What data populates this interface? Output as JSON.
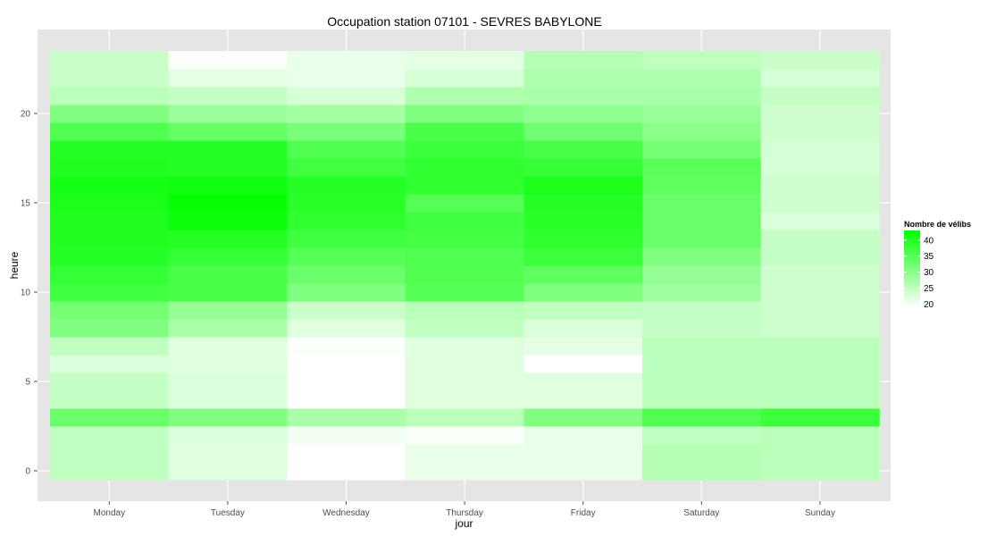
{
  "chart_data": {
    "type": "heatmap",
    "title": "Occupation station 07101 - SEVRES BABYLONE",
    "xlabel": "jour",
    "ylabel": "heure",
    "x": [
      "Monday",
      "Tuesday",
      "Wednesday",
      "Thursday",
      "Friday",
      "Saturday",
      "Sunday"
    ],
    "y": [
      0,
      1,
      2,
      3,
      4,
      5,
      6,
      7,
      8,
      9,
      10,
      11,
      12,
      13,
      14,
      15,
      16,
      17,
      18,
      19,
      20,
      21,
      22,
      23
    ],
    "y_ticks": [
      0,
      5,
      10,
      15,
      20
    ],
    "ylim": [
      -0.5,
      23.5
    ],
    "values": [
      [
        25.0,
        22.0,
        19.0,
        21.0,
        21.0,
        26.0,
        25.5
      ],
      [
        25.0,
        22.0,
        19.0,
        21.0,
        21.0,
        26.0,
        25.5
      ],
      [
        25.0,
        22.5,
        20.0,
        19.5,
        21.0,
        25.0,
        25.5
      ],
      [
        33.0,
        31.0,
        27.0,
        25.5,
        31.0,
        35.5,
        37.5
      ],
      [
        24.5,
        22.5,
        19.0,
        22.0,
        22.0,
        25.5,
        25.5
      ],
      [
        24.5,
        22.5,
        19.0,
        22.0,
        22.0,
        25.5,
        25.5
      ],
      [
        22.5,
        22.0,
        19.0,
        22.0,
        19.0,
        25.5,
        25.5
      ],
      [
        25.0,
        22.0,
        19.5,
        22.0,
        21.5,
        25.5,
        25.5
      ],
      [
        31.0,
        27.0,
        22.0,
        25.0,
        22.5,
        24.5,
        23.5
      ],
      [
        32.0,
        29.0,
        24.0,
        25.5,
        25.0,
        24.5,
        23.5
      ],
      [
        37.0,
        36.0,
        31.0,
        35.0,
        31.0,
        28.0,
        23.5
      ],
      [
        38.0,
        36.0,
        33.0,
        35.5,
        34.0,
        29.0,
        23.5
      ],
      [
        39.5,
        38.0,
        35.0,
        35.5,
        37.5,
        31.0,
        24.5
      ],
      [
        40.0,
        39.5,
        37.0,
        36.5,
        38.5,
        33.0,
        24.5
      ],
      [
        40.0,
        42.0,
        38.5,
        37.0,
        39.0,
        33.0,
        22.5
      ],
      [
        40.5,
        42.5,
        39.0,
        35.0,
        39.5,
        33.0,
        23.5
      ],
      [
        41.0,
        41.5,
        39.5,
        38.5,
        40.5,
        34.0,
        23.5
      ],
      [
        40.0,
        39.5,
        37.0,
        38.5,
        38.0,
        34.5,
        23.0
      ],
      [
        39.5,
        39.5,
        35.5,
        37.5,
        36.0,
        32.0,
        23.0
      ],
      [
        35.5,
        33.5,
        31.5,
        36.0,
        32.5,
        30.0,
        23.5
      ],
      [
        31.0,
        28.5,
        27.5,
        31.0,
        29.5,
        28.5,
        23.5
      ],
      [
        25.5,
        24.5,
        23.0,
        26.5,
        27.0,
        27.0,
        24.5
      ],
      [
        24.0,
        21.5,
        21.0,
        23.0,
        26.5,
        26.5,
        23.0
      ],
      [
        24.0,
        19.5,
        21.0,
        21.5,
        26.0,
        25.0,
        24.0
      ]
    ],
    "color_scale": {
      "low": "#ffffff",
      "high": "#00ff00",
      "domain": [
        19,
        43
      ]
    },
    "legend": {
      "title": "Nombre de vélibs",
      "position": "right",
      "ticks": [
        40,
        35,
        30,
        25,
        20
      ]
    },
    "panel_background": "#e5e5e5",
    "grid": true
  }
}
